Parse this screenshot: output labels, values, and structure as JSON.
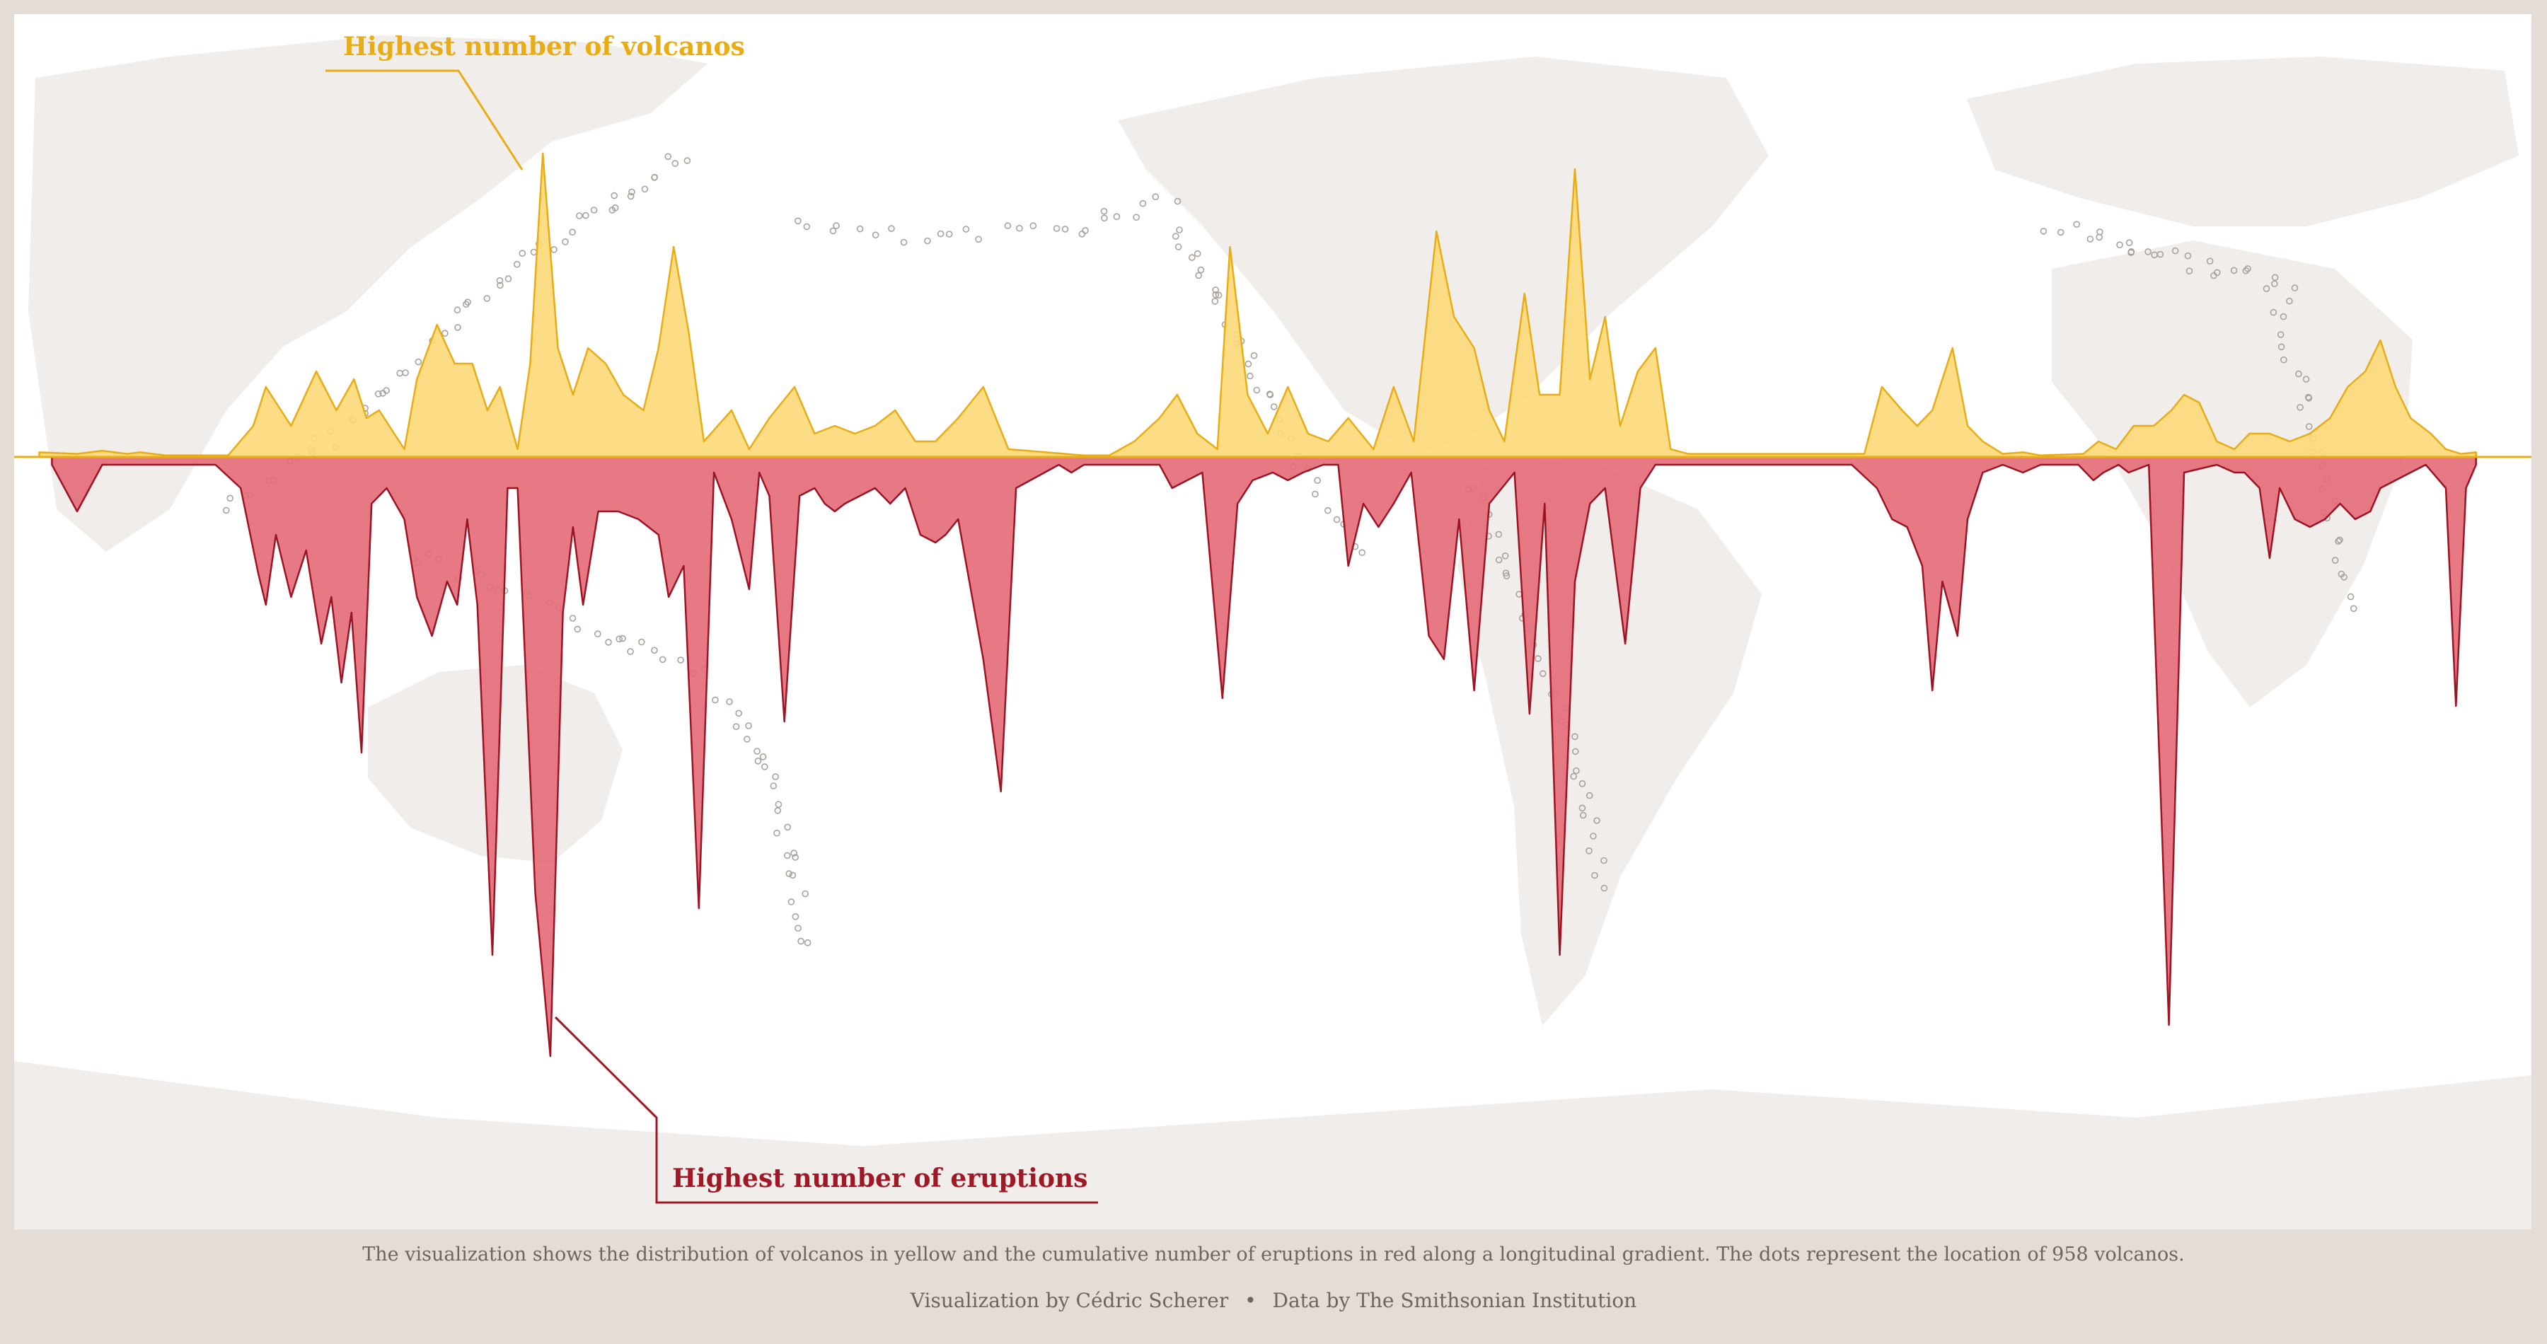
{
  "caption": "The visualization shows the distribution of volcanos in yellow and the cumulative number of eruptions in red along a longitudinal gradient. The dots represent the location of 958 volcanos.",
  "credits": {
    "author": "Visualization by Cédric Scherer",
    "separator": "•",
    "source": "Data by The Smithsonian Institution"
  },
  "colors": {
    "background": "#e4dcd7",
    "panel": "#ffffff",
    "land": "#f1edea",
    "volcano_fill": "#fcd97a",
    "volcano_line": "#e8ad14",
    "eruption_fill": "#e56e7b",
    "eruption_line": "#9c1424",
    "dot": "#a9a19c",
    "annotation_volcano": "#e8ad14",
    "annotation_eruption": "#a01826"
  },
  "chart_data": {
    "type": "area",
    "xlabel": "",
    "ylabel": "",
    "grid": false,
    "legend": "none",
    "annotations": [
      {
        "text": "Highest number of volcanos",
        "series": "volcanos"
      },
      {
        "text": "Highest number of eruptions",
        "series": "eruptions"
      }
    ],
    "volcanos": [
      [
        0.01,
        0.03
      ],
      [
        0.025,
        0.02
      ],
      [
        0.035,
        0.04
      ],
      [
        0.045,
        0.02
      ],
      [
        0.05,
        0.03
      ],
      [
        0.06,
        0.01
      ],
      [
        0.085,
        0.01
      ],
      [
        0.095,
        0.2
      ],
      [
        0.1,
        0.45
      ],
      [
        0.11,
        0.2
      ],
      [
        0.12,
        0.55
      ],
      [
        0.128,
        0.3
      ],
      [
        0.135,
        0.5
      ],
      [
        0.14,
        0.25
      ],
      [
        0.145,
        0.3
      ],
      [
        0.155,
        0.05
      ],
      [
        0.16,
        0.5
      ],
      [
        0.168,
        0.85
      ],
      [
        0.175,
        0.6
      ],
      [
        0.182,
        0.6
      ],
      [
        0.188,
        0.3
      ],
      [
        0.193,
        0.45
      ],
      [
        0.2,
        0.05
      ],
      [
        0.205,
        0.6
      ],
      [
        0.21,
        1.95
      ],
      [
        0.216,
        0.7
      ],
      [
        0.222,
        0.4
      ],
      [
        0.228,
        0.7
      ],
      [
        0.235,
        0.6
      ],
      [
        0.242,
        0.4
      ],
      [
        0.25,
        0.3
      ],
      [
        0.256,
        0.7
      ],
      [
        0.262,
        1.35
      ],
      [
        0.268,
        0.8
      ],
      [
        0.274,
        0.1
      ],
      [
        0.285,
        0.3
      ],
      [
        0.292,
        0.05
      ],
      [
        0.3,
        0.25
      ],
      [
        0.31,
        0.45
      ],
      [
        0.318,
        0.15
      ],
      [
        0.326,
        0.2
      ],
      [
        0.334,
        0.15
      ],
      [
        0.342,
        0.2
      ],
      [
        0.35,
        0.3
      ],
      [
        0.358,
        0.1
      ],
      [
        0.366,
        0.1
      ],
      [
        0.375,
        0.25
      ],
      [
        0.385,
        0.45
      ],
      [
        0.395,
        0.05
      ],
      [
        0.41,
        0.03
      ],
      [
        0.425,
        0.01
      ],
      [
        0.435,
        0.01
      ],
      [
        0.445,
        0.1
      ],
      [
        0.455,
        0.25
      ],
      [
        0.462,
        0.4
      ],
      [
        0.47,
        0.15
      ],
      [
        0.478,
        0.05
      ],
      [
        0.483,
        1.35
      ],
      [
        0.49,
        0.4
      ],
      [
        0.498,
        0.15
      ],
      [
        0.506,
        0.45
      ],
      [
        0.514,
        0.15
      ],
      [
        0.522,
        0.1
      ],
      [
        0.53,
        0.25
      ],
      [
        0.54,
        0.05
      ],
      [
        0.548,
        0.45
      ],
      [
        0.556,
        0.1
      ],
      [
        0.565,
        1.45
      ],
      [
        0.572,
        0.9
      ],
      [
        0.58,
        0.7
      ],
      [
        0.586,
        0.3
      ],
      [
        0.592,
        0.1
      ],
      [
        0.6,
        1.05
      ],
      [
        0.606,
        0.4
      ],
      [
        0.614,
        0.4
      ],
      [
        0.62,
        1.85
      ],
      [
        0.626,
        0.5
      ],
      [
        0.632,
        0.9
      ],
      [
        0.638,
        0.2
      ],
      [
        0.645,
        0.55
      ],
      [
        0.652,
        0.7
      ],
      [
        0.658,
        0.05
      ],
      [
        0.665,
        0.02
      ],
      [
        0.735,
        0.02
      ],
      [
        0.742,
        0.45
      ],
      [
        0.75,
        0.3
      ],
      [
        0.756,
        0.2
      ],
      [
        0.762,
        0.3
      ],
      [
        0.77,
        0.7
      ],
      [
        0.776,
        0.2
      ],
      [
        0.782,
        0.1
      ],
      [
        0.79,
        0.02
      ],
      [
        0.798,
        0.03
      ],
      [
        0.805,
        0.01
      ],
      [
        0.822,
        0.02
      ],
      [
        0.828,
        0.1
      ],
      [
        0.835,
        0.05
      ],
      [
        0.842,
        0.2
      ],
      [
        0.85,
        0.2
      ],
      [
        0.857,
        0.3
      ],
      [
        0.862,
        0.4
      ],
      [
        0.868,
        0.35
      ],
      [
        0.875,
        0.1
      ],
      [
        0.882,
        0.05
      ],
      [
        0.888,
        0.15
      ],
      [
        0.896,
        0.15
      ],
      [
        0.904,
        0.1
      ],
      [
        0.912,
        0.15
      ],
      [
        0.92,
        0.25
      ],
      [
        0.927,
        0.45
      ],
      [
        0.934,
        0.55
      ],
      [
        0.94,
        0.75
      ],
      [
        0.946,
        0.45
      ],
      [
        0.952,
        0.25
      ],
      [
        0.96,
        0.15
      ],
      [
        0.966,
        0.05
      ],
      [
        0.972,
        0.02
      ],
      [
        0.978,
        0.03
      ]
    ],
    "eruptions": [
      [
        0.015,
        -0.05
      ],
      [
        0.025,
        -0.35
      ],
      [
        0.035,
        -0.05
      ],
      [
        0.08,
        -0.05
      ],
      [
        0.09,
        -0.2
      ],
      [
        0.097,
        -0.75
      ],
      [
        0.1,
        -0.95
      ],
      [
        0.104,
        -0.5
      ],
      [
        0.11,
        -0.9
      ],
      [
        0.116,
        -0.6
      ],
      [
        0.122,
        -1.2
      ],
      [
        0.126,
        -0.9
      ],
      [
        0.13,
        -1.45
      ],
      [
        0.134,
        -1.0
      ],
      [
        0.138,
        -1.9
      ],
      [
        0.142,
        -0.3
      ],
      [
        0.148,
        -0.2
      ],
      [
        0.155,
        -0.4
      ],
      [
        0.16,
        -0.9
      ],
      [
        0.166,
        -1.15
      ],
      [
        0.172,
        -0.8
      ],
      [
        0.176,
        -0.95
      ],
      [
        0.18,
        -0.4
      ],
      [
        0.184,
        -0.95
      ],
      [
        0.19,
        -3.2
      ],
      [
        0.196,
        -0.2
      ],
      [
        0.2,
        -0.2
      ],
      [
        0.207,
        -2.8
      ],
      [
        0.213,
        -3.85
      ],
      [
        0.218,
        -1.0
      ],
      [
        0.222,
        -0.45
      ],
      [
        0.226,
        -0.95
      ],
      [
        0.232,
        -0.35
      ],
      [
        0.24,
        -0.35
      ],
      [
        0.248,
        -0.4
      ],
      [
        0.256,
        -0.5
      ],
      [
        0.26,
        -0.9
      ],
      [
        0.266,
        -0.7
      ],
      [
        0.272,
        -2.9
      ],
      [
        0.278,
        -0.1
      ],
      [
        0.285,
        -0.4
      ],
      [
        0.292,
        -0.85
      ],
      [
        0.296,
        -0.1
      ],
      [
        0.3,
        -0.25
      ],
      [
        0.306,
        -1.7
      ],
      [
        0.312,
        -0.25
      ],
      [
        0.318,
        -0.2
      ],
      [
        0.322,
        -0.3
      ],
      [
        0.326,
        -0.35
      ],
      [
        0.33,
        -0.3
      ],
      [
        0.336,
        -0.25
      ],
      [
        0.342,
        -0.2
      ],
      [
        0.348,
        -0.3
      ],
      [
        0.354,
        -0.2
      ],
      [
        0.36,
        -0.5
      ],
      [
        0.366,
        -0.55
      ],
      [
        0.37,
        -0.5
      ],
      [
        0.375,
        -0.4
      ],
      [
        0.385,
        -1.3
      ],
      [
        0.392,
        -2.15
      ],
      [
        0.398,
        -0.2
      ],
      [
        0.415,
        -0.05
      ],
      [
        0.42,
        -0.1
      ],
      [
        0.425,
        -0.05
      ],
      [
        0.445,
        -0.05
      ],
      [
        0.455,
        -0.05
      ],
      [
        0.46,
        -0.2
      ],
      [
        0.466,
        -0.15
      ],
      [
        0.472,
        -0.1
      ],
      [
        0.48,
        -1.55
      ],
      [
        0.486,
        -0.3
      ],
      [
        0.492,
        -0.15
      ],
      [
        0.5,
        -0.1
      ],
      [
        0.506,
        -0.15
      ],
      [
        0.512,
        -0.1
      ],
      [
        0.52,
        -0.05
      ],
      [
        0.526,
        -0.05
      ],
      [
        0.53,
        -0.7
      ],
      [
        0.536,
        -0.3
      ],
      [
        0.542,
        -0.45
      ],
      [
        0.548,
        -0.3
      ],
      [
        0.555,
        -0.1
      ],
      [
        0.562,
        -1.15
      ],
      [
        0.568,
        -1.3
      ],
      [
        0.574,
        -0.4
      ],
      [
        0.58,
        -1.5
      ],
      [
        0.586,
        -0.3
      ],
      [
        0.596,
        -0.1
      ],
      [
        0.602,
        -1.65
      ],
      [
        0.608,
        -0.3
      ],
      [
        0.614,
        -3.2
      ],
      [
        0.62,
        -0.8
      ],
      [
        0.626,
        -0.3
      ],
      [
        0.632,
        -0.2
      ],
      [
        0.64,
        -1.2
      ],
      [
        0.646,
        -0.2
      ],
      [
        0.652,
        -0.05
      ],
      [
        0.73,
        -0.05
      ],
      [
        0.74,
        -0.2
      ],
      [
        0.746,
        -0.4
      ],
      [
        0.752,
        -0.45
      ],
      [
        0.758,
        -0.7
      ],
      [
        0.762,
        -1.5
      ],
      [
        0.766,
        -0.8
      ],
      [
        0.772,
        -1.15
      ],
      [
        0.776,
        -0.4
      ],
      [
        0.782,
        -0.1
      ],
      [
        0.79,
        -0.05
      ],
      [
        0.798,
        -0.1
      ],
      [
        0.805,
        -0.05
      ],
      [
        0.82,
        -0.05
      ],
      [
        0.826,
        -0.15
      ],
      [
        0.83,
        -0.1
      ],
      [
        0.836,
        -0.05
      ],
      [
        0.84,
        -0.1
      ],
      [
        0.848,
        -0.05
      ],
      [
        0.856,
        -3.65
      ],
      [
        0.862,
        -0.1
      ],
      [
        0.875,
        -0.05
      ],
      [
        0.882,
        -0.1
      ],
      [
        0.886,
        -0.1
      ],
      [
        0.892,
        -0.2
      ],
      [
        0.896,
        -0.65
      ],
      [
        0.9,
        -0.2
      ],
      [
        0.906,
        -0.4
      ],
      [
        0.912,
        -0.45
      ],
      [
        0.918,
        -0.4
      ],
      [
        0.924,
        -0.3
      ],
      [
        0.93,
        -0.4
      ],
      [
        0.936,
        -0.35
      ],
      [
        0.94,
        -0.2
      ],
      [
        0.946,
        -0.15
      ],
      [
        0.952,
        -0.1
      ],
      [
        0.958,
        -0.05
      ],
      [
        0.966,
        -0.2
      ],
      [
        0.97,
        -1.6
      ],
      [
        0.974,
        -0.2
      ],
      [
        0.978,
        -0.05
      ]
    ]
  }
}
